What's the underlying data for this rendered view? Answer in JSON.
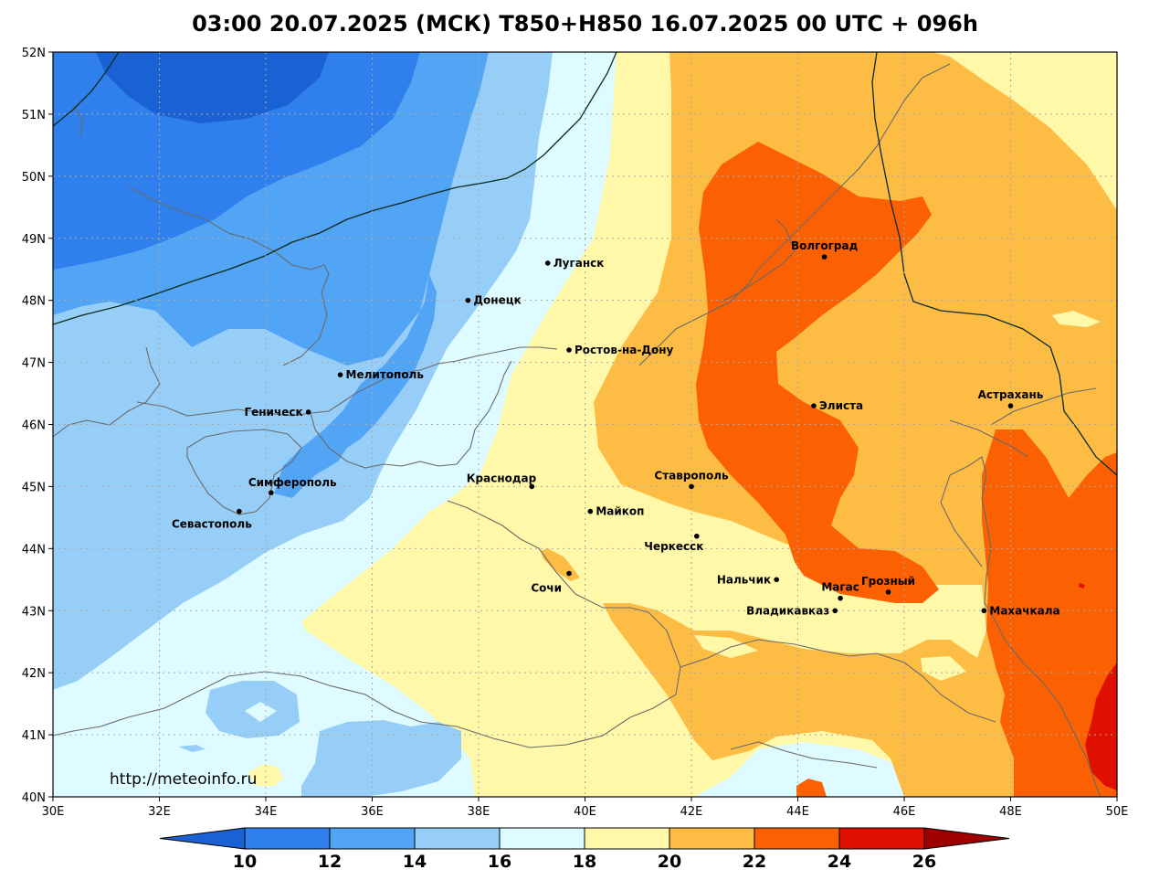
{
  "title": "03:00 20.07.2025 (МСК) T850+H850 16.07.2025 00 UTC + 096h",
  "map": {
    "lon_range": [
      30,
      50
    ],
    "lat_range": [
      40,
      52
    ],
    "x_ticks": [
      "30E",
      "32E",
      "34E",
      "36E",
      "38E",
      "40E",
      "42E",
      "44E",
      "46E",
      "48E",
      "50E"
    ],
    "y_ticks": [
      "40N",
      "41N",
      "42N",
      "43N",
      "44N",
      "45N",
      "46N",
      "47N",
      "48N",
      "49N",
      "50N",
      "51N",
      "52N"
    ],
    "grid": "dotted",
    "cities": [
      {
        "name": "Волгоград",
        "lon": 44.5,
        "lat": 48.7,
        "label_pos": "above"
      },
      {
        "name": "Луганск",
        "lon": 39.3,
        "lat": 48.6,
        "label_pos": "right"
      },
      {
        "name": "Донецк",
        "lon": 37.8,
        "lat": 48.0,
        "label_pos": "right"
      },
      {
        "name": "Ростов-на-Дону",
        "lon": 39.7,
        "lat": 47.2,
        "label_pos": "right"
      },
      {
        "name": "Мелитополь",
        "lon": 35.4,
        "lat": 46.8,
        "label_pos": "right"
      },
      {
        "name": "Элиста",
        "lon": 44.3,
        "lat": 46.3,
        "label_pos": "right"
      },
      {
        "name": "Астрахань",
        "lon": 48.0,
        "lat": 46.3,
        "label_pos": "above"
      },
      {
        "name": "Геническ",
        "lon": 34.8,
        "lat": 46.2,
        "label_pos": "left"
      },
      {
        "name": "Краснодар",
        "lon": 39.0,
        "lat": 45.0,
        "label_pos": "left-above"
      },
      {
        "name": "Ставрополь",
        "lon": 42.0,
        "lat": 45.0,
        "label_pos": "above"
      },
      {
        "name": "Симферополь",
        "lon": 34.1,
        "lat": 44.9,
        "label_pos": "right-above"
      },
      {
        "name": "Майкоп",
        "lon": 40.1,
        "lat": 44.6,
        "label_pos": "right"
      },
      {
        "name": "Севастополь",
        "lon": 33.5,
        "lat": 44.6,
        "label_pos": "below"
      },
      {
        "name": "Черкесск",
        "lon": 42.1,
        "lat": 44.2,
        "label_pos": "below-left"
      },
      {
        "name": "Нальчик",
        "lon": 43.6,
        "lat": 43.5,
        "label_pos": "left"
      },
      {
        "name": "Сочи",
        "lon": 39.7,
        "lat": 43.6,
        "label_pos": "left-below"
      },
      {
        "name": "Грозный",
        "lon": 45.7,
        "lat": 43.3,
        "label_pos": "above"
      },
      {
        "name": "Магас",
        "lon": 44.8,
        "lat": 43.2,
        "label_pos": "above"
      },
      {
        "name": "Владикавказ",
        "lon": 44.7,
        "lat": 43.0,
        "label_pos": "left"
      },
      {
        "name": "Махачкала",
        "lon": 47.5,
        "lat": 43.0,
        "label_pos": "right"
      }
    ]
  },
  "watermark": "http://meteoinfo.ru",
  "colorbar": {
    "labels": [
      "10",
      "12",
      "14",
      "16",
      "18",
      "20",
      "22",
      "24",
      "26"
    ],
    "colors": [
      "#1a62d4",
      "#2f80ec",
      "#52a4f5",
      "#97cef8",
      "#defcff",
      "#fff8a8",
      "#fdbd45",
      "#fb6003",
      "#e01000",
      "#9e0000"
    ]
  }
}
